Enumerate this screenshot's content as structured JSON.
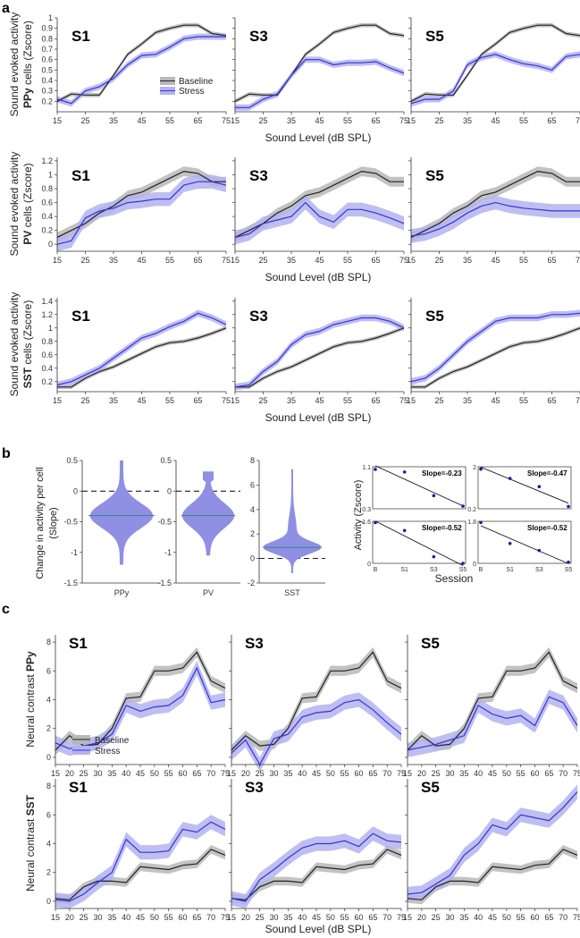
{
  "colors": {
    "baseline": "#222222",
    "baseline_band": "#b8b8b8",
    "stress": "#3434d9",
    "stress_band": "#b3b3ee",
    "violin": "#8f8fe3",
    "dot": "#1a1aa0"
  },
  "panel_labels": {
    "a": "a",
    "b": "b",
    "c": "c"
  },
  "sessions": [
    "S1",
    "S3",
    "S5"
  ],
  "legend": {
    "baseline": "Baseline",
    "stress": "Stress"
  },
  "x_axis_label": "Sound Level (dB SPL)",
  "x_ticks": [
    "15",
    "25",
    "35",
    "45",
    "55",
    "65",
    "75"
  ],
  "x_ticks_c": [
    "15",
    "20",
    "25",
    "30",
    "35",
    "40",
    "45",
    "50",
    "55",
    "60",
    "65",
    "70",
    "75"
  ],
  "b_panel": {
    "y_label_1": "Change in activity per cell",
    "y_label_2": "(Slope)",
    "mini_ylabel": "Activity  (Zscore)",
    "mini_xlabel": "Session",
    "mini_xticks": [
      "B",
      "S1",
      "S3",
      "S5"
    ]
  },
  "chart_data": [
    {
      "id": "a-ppy",
      "type": "line",
      "panel": "a",
      "ylabel_1": "Sound evoked activity",
      "ylabel_2_bold": "PPy",
      "ylabel_2_rest": " cells (Zscore)",
      "ylim": [
        0.1,
        1.0
      ],
      "yticks": [
        "0.2",
        "0.3",
        "0.4",
        "0.5",
        "0.6",
        "0.7",
        "0.8",
        "0.9",
        "1"
      ],
      "ytick_values": [
        0.2,
        0.3,
        0.4,
        0.5,
        0.6,
        0.7,
        0.8,
        0.9,
        1.0
      ],
      "x": [
        15,
        20,
        25,
        30,
        35,
        40,
        45,
        50,
        55,
        60,
        65,
        70,
        75
      ],
      "baseline": [
        0.2,
        0.27,
        0.26,
        0.26,
        0.45,
        0.65,
        0.75,
        0.86,
        0.9,
        0.93,
        0.93,
        0.85,
        0.83
      ],
      "baseline_err": 0.02,
      "stress": {
        "S1": [
          0.22,
          0.18,
          0.3,
          0.34,
          0.42,
          0.55,
          0.64,
          0.65,
          0.72,
          0.8,
          0.82,
          0.82,
          0.82
        ],
        "S3": [
          0.14,
          0.14,
          0.22,
          0.27,
          0.45,
          0.6,
          0.6,
          0.55,
          0.57,
          0.57,
          0.58,
          0.52,
          0.47
        ],
        "S5": [
          0.18,
          0.22,
          0.22,
          0.3,
          0.55,
          0.62,
          0.65,
          0.6,
          0.56,
          0.54,
          0.5,
          0.63,
          0.65
        ]
      },
      "stress_err": 0.03
    },
    {
      "id": "a-pv",
      "type": "line",
      "panel": "a",
      "ylabel_1": "Sound evoked activity",
      "ylabel_2_bold": "PV",
      "ylabel_2_rest": " cells (Zscore)",
      "ylim": [
        -0.1,
        1.25
      ],
      "yticks": [
        "0",
        "0.2",
        "0.4",
        "0.6",
        "0.8",
        "1",
        "1.2"
      ],
      "ytick_values": [
        0,
        0.2,
        0.4,
        0.6,
        0.8,
        1.0,
        1.2
      ],
      "x": [
        15,
        20,
        25,
        30,
        35,
        40,
        45,
        50,
        55,
        60,
        65,
        70,
        75
      ],
      "baseline": [
        0.1,
        0.2,
        0.3,
        0.45,
        0.55,
        0.7,
        0.75,
        0.85,
        0.95,
        1.05,
        1.02,
        0.9,
        0.9
      ],
      "baseline_err": 0.07,
      "stress": {
        "S1": [
          0.0,
          0.05,
          0.38,
          0.48,
          0.52,
          0.6,
          0.62,
          0.65,
          0.65,
          0.85,
          0.9,
          0.9,
          0.85
        ],
        "S3": [
          0.1,
          0.15,
          0.3,
          0.35,
          0.4,
          0.6,
          0.4,
          0.32,
          0.5,
          0.5,
          0.45,
          0.38,
          0.3
        ],
        "S5": [
          0.12,
          0.15,
          0.22,
          0.32,
          0.45,
          0.55,
          0.6,
          0.55,
          0.52,
          0.5,
          0.48,
          0.48,
          0.48
        ]
      },
      "stress_err": 0.1
    },
    {
      "id": "a-sst",
      "type": "line",
      "panel": "a",
      "ylabel_1": "Sound evoked activity",
      "ylabel_2_bold": "SST",
      "ylabel_2_rest": " cells (Zscore)",
      "ylim": [
        0.05,
        1.45
      ],
      "yticks": [
        "0.2",
        "0.4",
        "0.6",
        "0.8",
        "1",
        "1.2",
        "1.4"
      ],
      "ytick_values": [
        0.2,
        0.4,
        0.6,
        0.8,
        1.0,
        1.2,
        1.4
      ],
      "x": [
        15,
        20,
        25,
        30,
        35,
        40,
        45,
        50,
        55,
        60,
        65,
        70,
        75
      ],
      "baseline": [
        0.12,
        0.12,
        0.25,
        0.35,
        0.42,
        0.52,
        0.62,
        0.72,
        0.78,
        0.8,
        0.85,
        0.92,
        1.0
      ],
      "baseline_err": 0.03,
      "stress": {
        "S1": [
          0.15,
          0.2,
          0.3,
          0.4,
          0.55,
          0.7,
          0.85,
          0.92,
          1.02,
          1.1,
          1.22,
          1.15,
          1.05
        ],
        "S3": [
          0.12,
          0.15,
          0.35,
          0.5,
          0.75,
          0.9,
          0.95,
          1.05,
          1.1,
          1.15,
          1.15,
          1.1,
          1.0
        ],
        "S5": [
          0.2,
          0.25,
          0.4,
          0.6,
          0.8,
          0.95,
          1.1,
          1.15,
          1.15,
          1.15,
          1.2,
          1.2,
          1.22
        ]
      },
      "stress_err": 0.05
    },
    {
      "id": "b-violins",
      "type": "violin",
      "panel": "b",
      "groups": [
        {
          "name": "PPy",
          "ylim": [
            -1.5,
            0.5
          ],
          "yticks": [
            "-1.5",
            "-1",
            "-0.5",
            "0",
            "0.5"
          ],
          "ytick_values": [
            -1.5,
            -1,
            -0.5,
            0,
            0.5
          ],
          "median": -0.4,
          "range": [
            -1.2,
            0.5
          ]
        },
        {
          "name": "PV",
          "ylim": [
            -1.5,
            0.5
          ],
          "yticks": [
            "-1.5",
            "-1",
            "-0.5",
            "0",
            "0.5"
          ],
          "ytick_values": [
            -1.5,
            -1,
            -0.5,
            0,
            0.5
          ],
          "median": -0.4,
          "range": [
            -1.05,
            0.32
          ]
        },
        {
          "name": "SST",
          "ylim": [
            -2,
            8
          ],
          "yticks": [
            "-2",
            "0",
            "2",
            "4",
            "6",
            "8"
          ],
          "ytick_values": [
            -2,
            0,
            2,
            4,
            6,
            8
          ],
          "median": 0.9,
          "range": [
            -1.2,
            7.3
          ]
        }
      ]
    },
    {
      "id": "b-slopes",
      "type": "scatter",
      "panel": "b",
      "examples": [
        {
          "slope_label": "Slope=-0.23",
          "yticks": [
            "0.3",
            "1.1"
          ],
          "ytick_values": [
            0.3,
            1.1
          ],
          "ylim": [
            0.3,
            1.1
          ],
          "values": [
            1.05,
            1.0,
            0.55,
            0.35
          ]
        },
        {
          "slope_label": "Slope=-0.47",
          "yticks": [
            "0.2",
            "2"
          ],
          "ytick_values": [
            0.2,
            2.0
          ],
          "ylim": [
            0.2,
            2.0
          ],
          "values": [
            1.9,
            1.5,
            1.15,
            0.3
          ]
        },
        {
          "slope_label": "Slope=-0.52",
          "yticks": [
            "0",
            "1.6"
          ],
          "ytick_values": [
            0,
            1.6
          ],
          "ylim": [
            0,
            1.6
          ],
          "values": [
            1.55,
            1.25,
            0.25,
            0.0
          ]
        },
        {
          "slope_label": "Slope=-0.52",
          "yticks": [
            "0",
            "1.8"
          ],
          "ytick_values": [
            0,
            1.8
          ],
          "ylim": [
            0,
            1.8
          ],
          "values": [
            1.75,
            0.85,
            0.55,
            0.05
          ]
        }
      ]
    },
    {
      "id": "c-ppy",
      "type": "line",
      "panel": "c",
      "ylabel_1": "Neural contrast ",
      "ylabel_bold": "PPy",
      "ylim": [
        -0.5,
        8.5
      ],
      "yticks": [
        "0",
        "2",
        "4",
        "6",
        "8"
      ],
      "ytick_values": [
        0,
        2,
        4,
        6,
        8
      ],
      "x": [
        15,
        20,
        25,
        30,
        35,
        40,
        45,
        50,
        55,
        60,
        65,
        70,
        75
      ],
      "baseline": [
        0.5,
        1.5,
        0.8,
        0.9,
        2.0,
        4.1,
        4.2,
        6.0,
        6.0,
        6.2,
        7.3,
        5.3,
        4.8
      ],
      "baseline_err": 0.35,
      "stress": {
        "S1": [
          1.0,
          0.6,
          0.8,
          1.0,
          1.6,
          3.6,
          3.2,
          3.5,
          3.6,
          4.3,
          6.2,
          3.8,
          4.0
        ],
        "S3": [
          0.3,
          1.2,
          -0.5,
          1.3,
          1.6,
          2.8,
          3.1,
          3.2,
          3.8,
          4.0,
          3.3,
          2.4,
          1.6
        ],
        "S5": [
          0.5,
          0.7,
          0.9,
          1.2,
          1.5,
          3.6,
          3.0,
          2.7,
          2.9,
          2.2,
          4.2,
          3.8,
          2.2
        ]
      },
      "stress_err": 0.5
    },
    {
      "id": "c-sst",
      "type": "line",
      "panel": "c",
      "ylabel_1": "Neural contrast ",
      "ylabel_bold": "SST",
      "ylim": [
        -0.5,
        8.5
      ],
      "yticks": [
        "0",
        "2",
        "4",
        "6",
        "8"
      ],
      "ytick_values": [
        0,
        2,
        4,
        6,
        8
      ],
      "x": [
        15,
        20,
        25,
        30,
        35,
        40,
        45,
        50,
        55,
        60,
        65,
        70,
        75
      ],
      "baseline": [
        0.2,
        0.1,
        1.0,
        1.4,
        1.4,
        1.3,
        2.4,
        2.3,
        2.2,
        2.5,
        2.6,
        3.6,
        3.2
      ],
      "baseline_err": 0.3,
      "stress": {
        "S1": [
          0.1,
          0.0,
          0.5,
          1.3,
          2.0,
          4.3,
          3.4,
          3.4,
          3.5,
          5.0,
          4.8,
          5.5,
          5.0
        ],
        "S3": [
          0.2,
          0.0,
          1.5,
          2.2,
          3.0,
          3.7,
          4.0,
          4.0,
          4.2,
          3.8,
          4.7,
          4.2,
          4.1
        ],
        "S5": [
          0.5,
          0.6,
          1.2,
          1.8,
          3.2,
          4.0,
          5.3,
          5.0,
          6.0,
          5.8,
          5.6,
          6.5,
          7.6
        ]
      },
      "stress_err": 0.5
    }
  ]
}
